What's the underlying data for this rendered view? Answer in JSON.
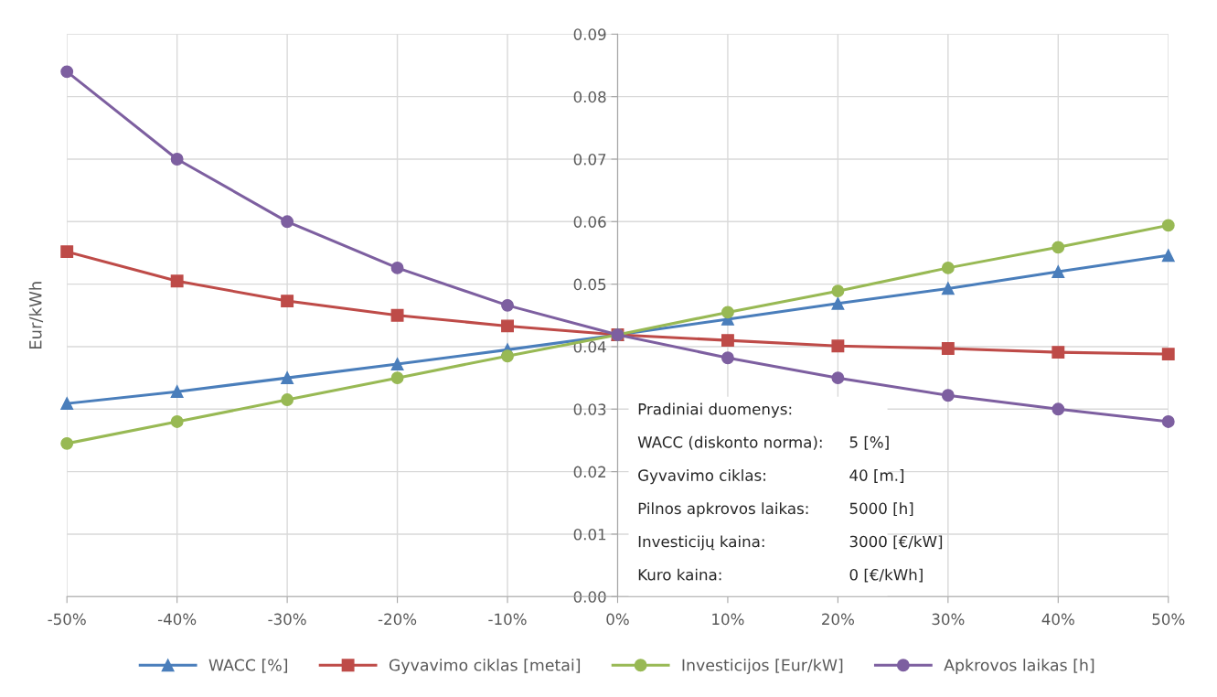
{
  "chart_data": {
    "type": "line",
    "ylabel": "Eur/kWh",
    "categories": [
      "-50%",
      "-40%",
      "-30%",
      "-20%",
      "-10%",
      "0%",
      "10%",
      "20%",
      "30%",
      "40%",
      "50%"
    ],
    "series": [
      {
        "name": "WACC [%]",
        "color": "#4a7ebb",
        "marker": "triangle",
        "values": [
          0.0309,
          0.0328,
          0.035,
          0.0372,
          0.0395,
          0.0419,
          0.0444,
          0.0469,
          0.0493,
          0.052,
          0.0546
        ]
      },
      {
        "name": "Gyvavimo ciklas [metai]",
        "color": "#be4b48",
        "marker": "square",
        "values": [
          0.0552,
          0.0505,
          0.0473,
          0.045,
          0.0433,
          0.0419,
          0.041,
          0.0401,
          0.0397,
          0.0391,
          0.0388
        ]
      },
      {
        "name": "Investicijos [Eur/kW]",
        "color": "#98b954",
        "marker": "circle",
        "values": [
          0.0245,
          0.028,
          0.0315,
          0.035,
          0.0385,
          0.0419,
          0.0455,
          0.0489,
          0.0526,
          0.0559,
          0.0594
        ]
      },
      {
        "name": "Apkrovos laikas [h]",
        "color": "#7d5fa0",
        "marker": "circle",
        "values": [
          0.084,
          0.07,
          0.06,
          0.0526,
          0.0466,
          0.0419,
          0.0382,
          0.035,
          0.0322,
          0.03,
          0.028
        ]
      }
    ],
    "ylim": [
      0,
      0.09
    ],
    "yticks": [
      {
        "value": 0,
        "label": "0.00"
      },
      {
        "value": 0.01,
        "label": "0.01"
      },
      {
        "value": 0.02,
        "label": "0.02"
      },
      {
        "value": 0.03,
        "label": "0.03"
      },
      {
        "value": 0.04,
        "label": "0.04"
      },
      {
        "value": 0.05,
        "label": "0.05"
      },
      {
        "value": 0.06,
        "label": "0.06"
      },
      {
        "value": 0.07,
        "label": "0.07"
      },
      {
        "value": 0.08,
        "label": "0.08"
      },
      {
        "value": 0.09,
        "label": "0.09"
      }
    ],
    "grid": true,
    "legend": "bottom",
    "line_style": "solid",
    "annotations": [
      "Pradiniai duomenys:",
      "WACC (diskonto norma):",
      "5 [%]",
      "Gyvavimo ciklas:",
      "40 [m.]",
      "Pilnos apkrovos laikas:",
      "5000 [h]",
      "Investicijų kaina:",
      "3000 [€/kW]",
      "Kuro kaina:",
      "0 [€/kWh]"
    ]
  }
}
